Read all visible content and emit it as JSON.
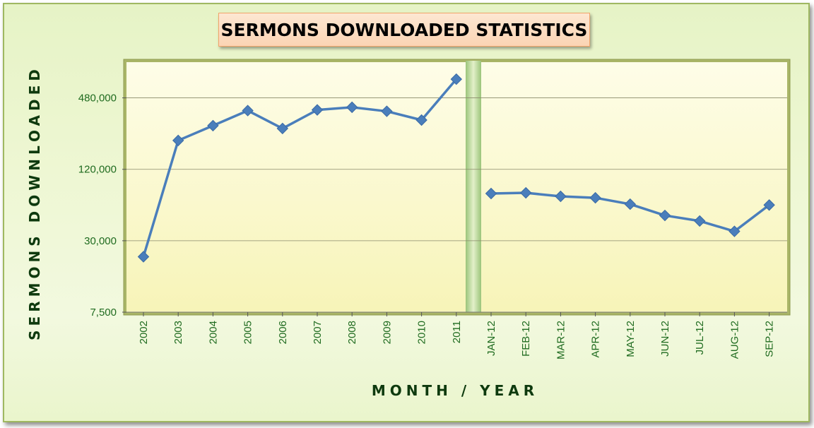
{
  "chart_data": {
    "type": "line",
    "title": "SERMONS DOWNLOADED STATISTICS",
    "xlabel": "MONTH / YEAR",
    "ylabel": "SERMONS DOWNLOADED",
    "y_scale": "log",
    "ylim": [
      7500,
      960000
    ],
    "y_ticks": [
      7500,
      30000,
      120000,
      480000
    ],
    "y_tick_labels": [
      "7,500",
      "30,000",
      "120,000",
      "480,000"
    ],
    "grid": true,
    "legend": "none",
    "line_color": "#4a7ebb",
    "segments": [
      {
        "categories": [
          "2002",
          "2003",
          "2004",
          "2005",
          "2006",
          "2007",
          "2008",
          "2009",
          "2010",
          "2011"
        ],
        "values": [
          22000,
          210000,
          280000,
          375000,
          265000,
          380000,
          400000,
          370000,
          312000,
          690000
        ]
      },
      {
        "categories": [
          "JAN-12",
          "FEB-12",
          "MAR-12",
          "APR-12",
          "MAY-12",
          "JUN-12",
          "JUL-12",
          "AUG-12",
          "SEP-12"
        ],
        "values": [
          75000,
          76000,
          71000,
          69000,
          61000,
          49000,
          44000,
          36000,
          60000
        ]
      }
    ]
  }
}
